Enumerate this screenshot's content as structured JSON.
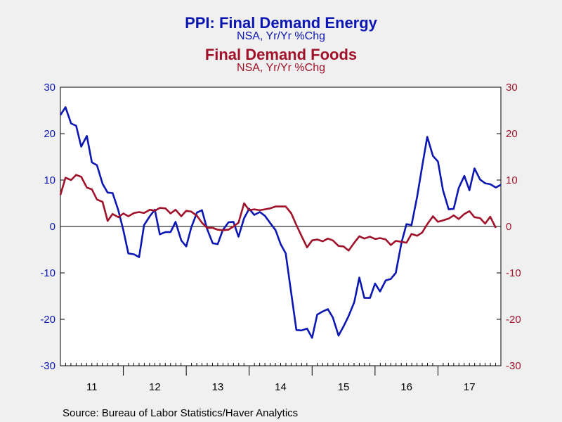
{
  "titles": {
    "title1": "PPI: Final Demand Energy",
    "subtitle1": "NSA, Yr/Yr %Chg",
    "title2": "Final Demand Foods",
    "subtitle2": "NSA, Yr/Yr %Chg"
  },
  "source": "Source:  Bureau of Labor Statistics/Haver Analytics",
  "colors": {
    "energy": "#0c17b3",
    "foods": "#a0122a",
    "axis": "#000000"
  },
  "chart_data": {
    "type": "line",
    "title": "PPI: Final Demand Energy / Final Demand Foods",
    "ylim": [
      -30,
      30
    ],
    "ylim_right": [
      -30,
      30
    ],
    "y_ticks": [
      30,
      20,
      10,
      0,
      -10,
      -20,
      -30
    ],
    "y_tick_labels": [
      "30",
      "20",
      "10",
      "0",
      "-10",
      "-20",
      "-30"
    ],
    "x_start": 2011.0,
    "x_end": 2018.0,
    "x_ticks": [
      "11",
      "12",
      "13",
      "14",
      "15",
      "16",
      "17"
    ],
    "grid": false,
    "zero_line": true,
    "series": [
      {
        "name": "PPI: Final Demand Energy",
        "axis": "left",
        "color": "#0c17b3",
        "points": [
          [
            2011.0,
            24.0
          ],
          [
            2011.08,
            25.7
          ],
          [
            2011.17,
            22.2
          ],
          [
            2011.25,
            21.7
          ],
          [
            2011.33,
            17.2
          ],
          [
            2011.42,
            19.5
          ],
          [
            2011.5,
            13.8
          ],
          [
            2011.58,
            13.2
          ],
          [
            2011.67,
            9.2
          ],
          [
            2011.75,
            7.3
          ],
          [
            2011.83,
            7.2
          ],
          [
            2011.92,
            3.5
          ],
          [
            2012.0,
            -0.8
          ],
          [
            2012.08,
            -5.8
          ],
          [
            2012.17,
            -6.0
          ],
          [
            2012.25,
            -6.6
          ],
          [
            2012.33,
            0.3
          ],
          [
            2012.42,
            2.2
          ],
          [
            2012.5,
            3.6
          ],
          [
            2012.58,
            -1.7
          ],
          [
            2012.67,
            -1.2
          ],
          [
            2012.75,
            -1.2
          ],
          [
            2012.83,
            1.0
          ],
          [
            2012.92,
            -3.0
          ],
          [
            2013.0,
            -4.3
          ],
          [
            2013.08,
            -0.2
          ],
          [
            2013.17,
            3.0
          ],
          [
            2013.25,
            3.5
          ],
          [
            2013.33,
            -0.5
          ],
          [
            2013.42,
            -3.6
          ],
          [
            2013.5,
            -3.8
          ],
          [
            2013.58,
            -0.8
          ],
          [
            2013.67,
            0.9
          ],
          [
            2013.75,
            1.0
          ],
          [
            2013.83,
            -2.2
          ],
          [
            2013.92,
            1.8
          ],
          [
            2014.0,
            3.8
          ],
          [
            2014.08,
            2.5
          ],
          [
            2014.17,
            3.1
          ],
          [
            2014.25,
            2.3
          ],
          [
            2014.33,
            0.8
          ],
          [
            2014.42,
            -0.8
          ],
          [
            2014.5,
            -3.8
          ],
          [
            2014.58,
            -5.8
          ],
          [
            2014.67,
            -14.5
          ],
          [
            2014.75,
            -22.3
          ],
          [
            2014.83,
            -22.4
          ],
          [
            2014.92,
            -22.0
          ],
          [
            2015.0,
            -24.0
          ],
          [
            2015.08,
            -19.0
          ],
          [
            2015.17,
            -18.3
          ],
          [
            2015.25,
            -17.8
          ],
          [
            2015.33,
            -19.6
          ],
          [
            2015.42,
            -23.5
          ],
          [
            2015.5,
            -21.5
          ],
          [
            2015.58,
            -19.3
          ],
          [
            2015.67,
            -16.3
          ],
          [
            2015.75,
            -11.0
          ],
          [
            2015.83,
            -15.4
          ],
          [
            2015.92,
            -15.4
          ],
          [
            2016.0,
            -12.3
          ],
          [
            2016.08,
            -14.0
          ],
          [
            2016.17,
            -11.6
          ],
          [
            2016.25,
            -11.3
          ],
          [
            2016.33,
            -10.0
          ],
          [
            2016.42,
            -3.5
          ],
          [
            2016.5,
            0.5
          ],
          [
            2016.58,
            0.3
          ],
          [
            2016.67,
            6.5
          ],
          [
            2016.75,
            13.0
          ],
          [
            2016.83,
            19.3
          ],
          [
            2016.92,
            15.2
          ],
          [
            2017.0,
            14.0
          ],
          [
            2017.08,
            7.8
          ],
          [
            2017.17,
            3.7
          ],
          [
            2017.25,
            3.8
          ],
          [
            2017.33,
            8.3
          ],
          [
            2017.42,
            10.9
          ],
          [
            2017.5,
            7.8
          ],
          [
            2017.58,
            12.5
          ],
          [
            2017.67,
            10.1
          ],
          [
            2017.75,
            9.3
          ],
          [
            2017.83,
            9.1
          ],
          [
            2017.92,
            8.4
          ],
          [
            2018.0,
            9.0
          ]
        ]
      },
      {
        "name": "Final Demand Foods",
        "axis": "right",
        "color": "#a0122a",
        "points": [
          [
            2011.0,
            6.8
          ],
          [
            2011.08,
            10.5
          ],
          [
            2011.17,
            10.0
          ],
          [
            2011.25,
            11.1
          ],
          [
            2011.33,
            10.7
          ],
          [
            2011.42,
            8.4
          ],
          [
            2011.5,
            8.0
          ],
          [
            2011.58,
            5.8
          ],
          [
            2011.67,
            5.3
          ],
          [
            2011.75,
            1.2
          ],
          [
            2011.83,
            2.7
          ],
          [
            2011.92,
            2.0
          ],
          [
            2012.0,
            2.8
          ],
          [
            2012.08,
            2.2
          ],
          [
            2012.17,
            2.9
          ],
          [
            2012.25,
            3.1
          ],
          [
            2012.33,
            2.9
          ],
          [
            2012.42,
            3.6
          ],
          [
            2012.5,
            3.4
          ],
          [
            2012.58,
            4.0
          ],
          [
            2012.67,
            3.9
          ],
          [
            2012.75,
            2.8
          ],
          [
            2012.83,
            3.6
          ],
          [
            2012.92,
            2.2
          ],
          [
            2013.0,
            3.4
          ],
          [
            2013.08,
            3.2
          ],
          [
            2013.17,
            2.3
          ],
          [
            2013.25,
            0.8
          ],
          [
            2013.33,
            -0.3
          ],
          [
            2013.42,
            -0.3
          ],
          [
            2013.5,
            -0.7
          ],
          [
            2013.58,
            -0.8
          ],
          [
            2013.67,
            -0.7
          ],
          [
            2013.75,
            0.0
          ],
          [
            2013.83,
            0.8
          ],
          [
            2013.92,
            5.0
          ],
          [
            2014.0,
            3.5
          ],
          [
            2014.08,
            3.7
          ],
          [
            2014.17,
            3.5
          ],
          [
            2014.25,
            3.7
          ],
          [
            2014.33,
            3.9
          ],
          [
            2014.42,
            4.3
          ],
          [
            2014.5,
            4.3
          ],
          [
            2014.58,
            4.3
          ],
          [
            2014.67,
            2.8
          ],
          [
            2014.75,
            0.3
          ],
          [
            2014.83,
            -2.0
          ],
          [
            2014.92,
            -4.5
          ],
          [
            2015.0,
            -3.0
          ],
          [
            2015.08,
            -2.8
          ],
          [
            2015.17,
            -3.2
          ],
          [
            2015.25,
            -2.6
          ],
          [
            2015.33,
            -3.0
          ],
          [
            2015.42,
            -4.2
          ],
          [
            2015.5,
            -4.3
          ],
          [
            2015.58,
            -5.2
          ],
          [
            2015.67,
            -3.5
          ],
          [
            2015.75,
            -2.1
          ],
          [
            2015.83,
            -2.6
          ],
          [
            2015.92,
            -2.2
          ],
          [
            2016.0,
            -2.7
          ],
          [
            2016.08,
            -2.5
          ],
          [
            2016.17,
            -2.8
          ],
          [
            2016.25,
            -4.0
          ],
          [
            2016.33,
            -3.1
          ],
          [
            2016.42,
            -3.3
          ],
          [
            2016.5,
            -3.5
          ],
          [
            2016.58,
            -1.6
          ],
          [
            2016.67,
            -2.0
          ],
          [
            2016.75,
            -1.3
          ],
          [
            2016.83,
            0.5
          ],
          [
            2016.92,
            2.2
          ],
          [
            2017.0,
            1.0
          ],
          [
            2017.08,
            1.3
          ],
          [
            2017.17,
            1.7
          ],
          [
            2017.25,
            2.4
          ],
          [
            2017.33,
            1.6
          ],
          [
            2017.42,
            2.7
          ],
          [
            2017.5,
            3.3
          ],
          [
            2017.58,
            2.0
          ],
          [
            2017.67,
            1.8
          ],
          [
            2017.75,
            0.6
          ],
          [
            2017.83,
            2.1
          ],
          [
            2017.92,
            -0.3
          ]
        ]
      }
    ]
  }
}
